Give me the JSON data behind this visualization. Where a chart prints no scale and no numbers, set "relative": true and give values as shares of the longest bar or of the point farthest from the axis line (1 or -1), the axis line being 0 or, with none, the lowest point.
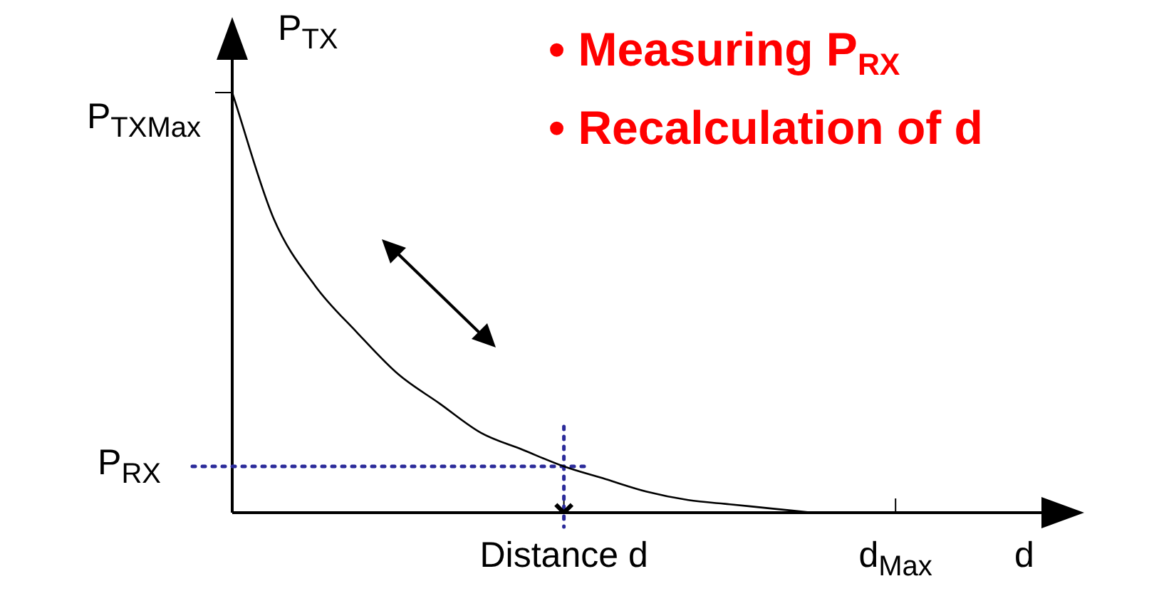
{
  "chart_data": {
    "type": "line",
    "relative": true,
    "xlabel": "d",
    "ylabel": "P$_{TX}$",
    "categories": [
      null,
      null,
      null,
      null,
      null,
      null,
      null,
      null,
      "Distance d",
      null,
      null,
      null,
      null,
      null,
      null,
      null,
      "d$_{Max}$",
      null,
      null,
      null,
      null
    ],
    "series": [
      {
        "color": "#000000",
        "values": [
          1,
          0.7,
          0.54,
          0.43,
          0.33,
          0.26,
          0.19,
          0.15,
          0.11,
          0.08,
          0.05,
          0.03,
          0.02,
          0.01,
          0,
          null,
          null,
          null,
          null,
          null,
          null
        ]
      },
      {
        "type": "scatter",
        "marker": "cross",
        "color": "#000000",
        "x": [
          "Distance d"
        ],
        "values": [
          0
        ]
      }
    ],
    "ref_lines": [
      {
        "axis": "y",
        "value": 0.11,
        "label": "P$_{RX}$",
        "color": "#2b2b9a",
        "line_style": "dotted"
      },
      {
        "axis": "x",
        "value": "Distance d",
        "color": "#2b2b9a",
        "line_style": "dotted"
      }
    ],
    "annotations": [
      "P$_{TXMax}$",
      "• Measuring P$_{RX}$",
      "• Recalculation of d"
    ]
  }
}
